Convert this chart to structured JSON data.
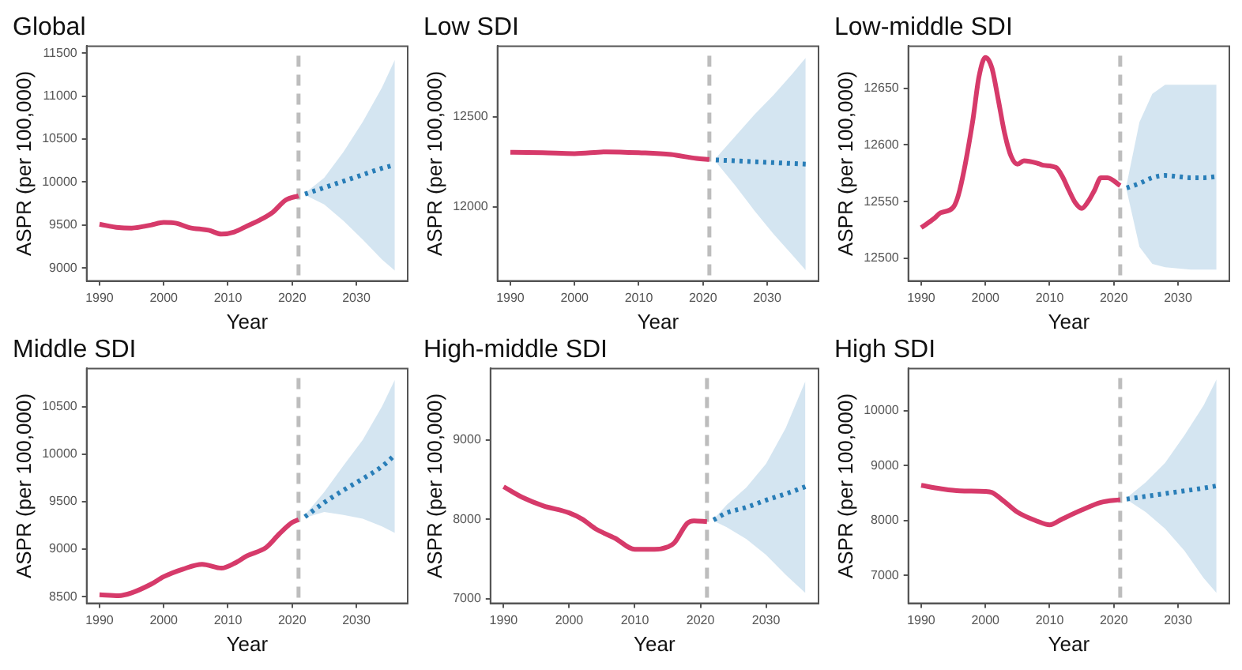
{
  "chart_data": [
    {
      "type": "line",
      "title": "Global",
      "xlabel": "Year",
      "ylabel": "ASPR (per 100,000)",
      "xlim": [
        1988,
        2038
      ],
      "xticks": [
        1990,
        2000,
        2010,
        2020,
        2030
      ],
      "ylim": [
        8850,
        11580
      ],
      "yticks": [
        9000,
        9500,
        10000,
        10500,
        11000,
        11500
      ],
      "grid": false,
      "legend": false,
      "ref_lines": [
        {
          "axis": "x",
          "value": 2021,
          "color": "#bdbdbd",
          "line_style": "dashed"
        }
      ],
      "series": [
        {
          "color": "#d63a6a",
          "x": [
            1990,
            1993,
            1995,
            1998,
            2000,
            2002,
            2004,
            2007,
            2009,
            2011,
            2013,
            2015,
            2017,
            2019,
            2021
          ],
          "values": [
            9510,
            9470,
            9465,
            9500,
            9530,
            9520,
            9470,
            9440,
            9395,
            9420,
            9490,
            9560,
            9650,
            9790,
            9840
          ]
        },
        {
          "color": "#2a7fb8",
          "line_style": "dotted",
          "x": [
            2022,
            2025,
            2028,
            2031,
            2034,
            2036
          ],
          "values": [
            9860,
            9935,
            10010,
            10085,
            10160,
            10200
          ],
          "lower": [
            9850,
            9740,
            9550,
            9330,
            9100,
            8970
          ],
          "upper": [
            9870,
            10050,
            10350,
            10700,
            11100,
            11420
          ]
        }
      ]
    },
    {
      "type": "line",
      "title": "Low SDI",
      "xlabel": "Year",
      "ylabel": "ASPR (per 100,000)",
      "xlim": [
        1988,
        2038
      ],
      "xticks": [
        1990,
        2000,
        2010,
        2020,
        2030
      ],
      "ylim": [
        11590,
        12890
      ],
      "yticks": [
        12000,
        12500
      ],
      "grid": false,
      "legend": false,
      "ref_lines": [
        {
          "axis": "x",
          "value": 2021,
          "color": "#bdbdbd",
          "line_style": "dashed"
        }
      ],
      "series": [
        {
          "color": "#d63a6a",
          "x": [
            1990,
            1995,
            2000,
            2005,
            2010,
            2015,
            2019,
            2021
          ],
          "values": [
            12302,
            12300,
            12295,
            12305,
            12300,
            12290,
            12268,
            12263
          ]
        },
        {
          "color": "#2a7fb8",
          "line_style": "dotted",
          "x": [
            2022,
            2025,
            2028,
            2031,
            2034,
            2036
          ],
          "values": [
            12260,
            12255,
            12250,
            12245,
            12240,
            12237
          ],
          "lower": [
            12250,
            12120,
            11980,
            11850,
            11730,
            11650
          ],
          "upper": [
            12270,
            12390,
            12510,
            12620,
            12740,
            12825
          ]
        }
      ]
    },
    {
      "type": "line",
      "title": "Low-middle SDI",
      "xlabel": "Year",
      "ylabel": "ASPR (per 100,000)",
      "xlim": [
        1988,
        2038
      ],
      "xticks": [
        1990,
        2000,
        2010,
        2020,
        2030
      ],
      "ylim": [
        12480,
        12687
      ],
      "yticks": [
        12500,
        12550,
        12600,
        12650
      ],
      "grid": false,
      "legend": false,
      "ref_lines": [
        {
          "axis": "x",
          "value": 2021,
          "color": "#bdbdbd",
          "line_style": "dashed"
        }
      ],
      "series": [
        {
          "color": "#d63a6a",
          "x": [
            1990,
            1992,
            1993,
            1995,
            1996,
            1998,
            1999,
            2000,
            2001,
            2002,
            2003,
            2004,
            2005,
            2006,
            2008,
            2009,
            2011,
            2012,
            2013,
            2014,
            2015,
            2016,
            2017,
            2018,
            2019,
            2021
          ],
          "values": [
            12527,
            12535,
            12540,
            12545,
            12560,
            12620,
            12660,
            12677,
            12668,
            12640,
            12610,
            12590,
            12583,
            12586,
            12584,
            12582,
            12580,
            12572,
            12560,
            12549,
            12544,
            12550,
            12560,
            12571,
            12571,
            12564
          ]
        },
        {
          "color": "#2a7fb8",
          "line_style": "dotted",
          "x": [
            2022,
            2024,
            2026,
            2028,
            2030,
            2032,
            2034,
            2036
          ],
          "values": [
            12562,
            12566,
            12571,
            12573,
            12572,
            12571,
            12571,
            12572
          ],
          "lower": [
            12560,
            12510,
            12495,
            12492,
            12491,
            12490,
            12490,
            12490
          ],
          "upper": [
            12565,
            12620,
            12645,
            12653,
            12653,
            12653,
            12653,
            12653
          ]
        }
      ]
    },
    {
      "type": "line",
      "title": "Middle SDI",
      "xlabel": "Year",
      "ylabel": "ASPR (per 100,000)",
      "xlim": [
        1988,
        2038
      ],
      "xticks": [
        1990,
        2000,
        2010,
        2020,
        2030
      ],
      "ylim": [
        8430,
        10900
      ],
      "yticks": [
        8500,
        9000,
        9500,
        10000,
        10500
      ],
      "grid": false,
      "legend": false,
      "ref_lines": [
        {
          "axis": "x",
          "value": 2021,
          "color": "#bdbdbd",
          "line_style": "dashed"
        }
      ],
      "series": [
        {
          "color": "#d63a6a",
          "x": [
            1990,
            1993,
            1995,
            1998,
            2000,
            2003,
            2006,
            2009,
            2011,
            2013,
            2016,
            2018,
            2020,
            2021
          ],
          "values": [
            8520,
            8510,
            8540,
            8630,
            8710,
            8790,
            8840,
            8800,
            8850,
            8930,
            9020,
            9160,
            9280,
            9310
          ]
        },
        {
          "color": "#2a7fb8",
          "line_style": "dotted",
          "x": [
            2022,
            2025,
            2028,
            2031,
            2034,
            2036
          ],
          "values": [
            9340,
            9490,
            9620,
            9740,
            9870,
            9990
          ],
          "lower": [
            9330,
            9390,
            9360,
            9320,
            9240,
            9170
          ],
          "upper": [
            9360,
            9600,
            9880,
            10150,
            10500,
            10780
          ]
        }
      ]
    },
    {
      "type": "line",
      "title": "High-middle SDI",
      "xlabel": "Year",
      "ylabel": "ASPR (per 100,000)",
      "xlim": [
        1988,
        2038
      ],
      "xticks": [
        1990,
        2000,
        2010,
        2020,
        2030
      ],
      "ylim": [
        6940,
        9900
      ],
      "yticks": [
        7000,
        8000,
        9000
      ],
      "grid": false,
      "legend": false,
      "ref_lines": [
        {
          "axis": "x",
          "value": 2021,
          "color": "#bdbdbd",
          "line_style": "dashed"
        }
      ],
      "series": [
        {
          "color": "#d63a6a",
          "x": [
            1990,
            1993,
            1996,
            2000,
            2002,
            2004,
            2007,
            2010,
            2013,
            2015,
            2016,
            2018,
            2019,
            2021
          ],
          "values": [
            8410,
            8270,
            8170,
            8080,
            8000,
            7880,
            7760,
            7620,
            7620,
            7650,
            7700,
            7950,
            7980,
            7970
          ]
        },
        {
          "color": "#2a7fb8",
          "line_style": "dotted",
          "x": [
            2022,
            2024,
            2027,
            2030,
            2033,
            2036
          ],
          "values": [
            7990,
            8080,
            8150,
            8240,
            8320,
            8410
          ],
          "lower": [
            7980,
            7900,
            7750,
            7550,
            7300,
            7070
          ],
          "upper": [
            8000,
            8180,
            8400,
            8700,
            9150,
            9740
          ]
        }
      ]
    },
    {
      "type": "line",
      "title": "High SDI",
      "xlabel": "Year",
      "ylabel": "ASPR (per 100,000)",
      "xlim": [
        1988,
        2038
      ],
      "xticks": [
        1990,
        2000,
        2010,
        2020,
        2030
      ],
      "ylim": [
        6490,
        10770
      ],
      "yticks": [
        7000,
        8000,
        9000,
        10000
      ],
      "grid": false,
      "legend": false,
      "ref_lines": [
        {
          "axis": "x",
          "value": 2021,
          "color": "#bdbdbd",
          "line_style": "dashed"
        }
      ],
      "series": [
        {
          "color": "#d63a6a",
          "x": [
            1990,
            1993,
            1996,
            2000,
            2001,
            2003,
            2005,
            2008,
            2010,
            2012,
            2015,
            2018,
            2021
          ],
          "values": [
            8640,
            8580,
            8540,
            8530,
            8510,
            8340,
            8150,
            7990,
            7920,
            8030,
            8190,
            8330,
            8380
          ]
        },
        {
          "color": "#2a7fb8",
          "line_style": "dotted",
          "x": [
            2022,
            2025,
            2028,
            2031,
            2034,
            2036
          ],
          "values": [
            8390,
            8440,
            8490,
            8540,
            8590,
            8630
          ],
          "lower": [
            8380,
            8150,
            7850,
            7450,
            6950,
            6680
          ],
          "upper": [
            8410,
            8700,
            9050,
            9550,
            10100,
            10570
          ]
        }
      ]
    }
  ]
}
